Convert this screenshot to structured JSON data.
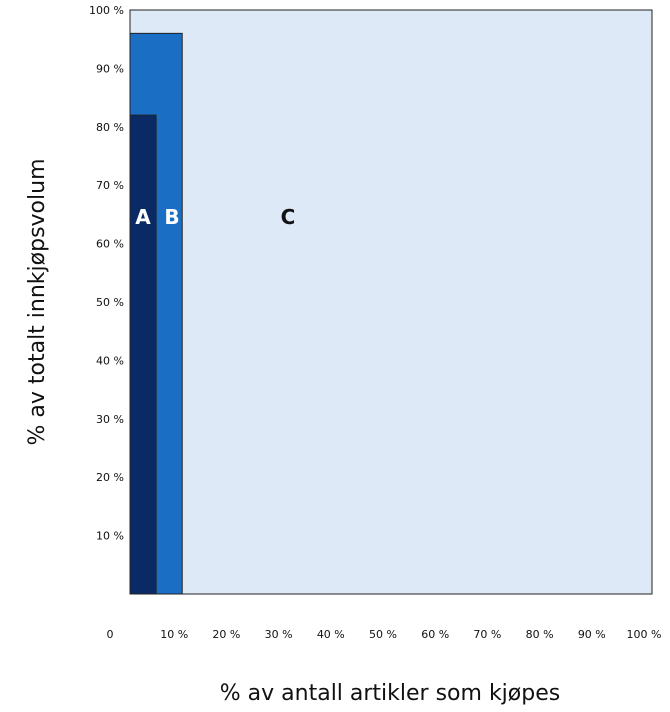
{
  "chart_data": {
    "type": "area",
    "title": "",
    "xlabel": "% av antall artikler som kjøpes",
    "ylabel": "% av totalt innkjøpsvolum",
    "xlim": [
      0,
      100
    ],
    "ylim": [
      0,
      100
    ],
    "x_tick_labels": [
      "0",
      "10 %",
      "20 %",
      "30 %",
      "40 %",
      "50 %",
      "60 %",
      "70 %",
      "80 %",
      "90 %",
      "100 %"
    ],
    "y_tick_labels": [
      "10 %",
      "20 %",
      "30 %",
      "40 %",
      "50 %",
      "60 %",
      "70 %",
      "80 %",
      "90 %",
      "100 %"
    ],
    "segments": [
      {
        "name": "A",
        "x_end": 5,
        "y_end": 82,
        "color": "#0a2a66",
        "label_color": "#ffffff"
      },
      {
        "name": "B",
        "x_end": 10,
        "y_end": 96,
        "color": "#1a6fc4",
        "label_color": "#ffffff"
      },
      {
        "name": "C",
        "x_end": 100,
        "y_end": 100,
        "color": "#dde9f6",
        "label_color": "#111111"
      }
    ],
    "grid": false,
    "legend": "none"
  }
}
